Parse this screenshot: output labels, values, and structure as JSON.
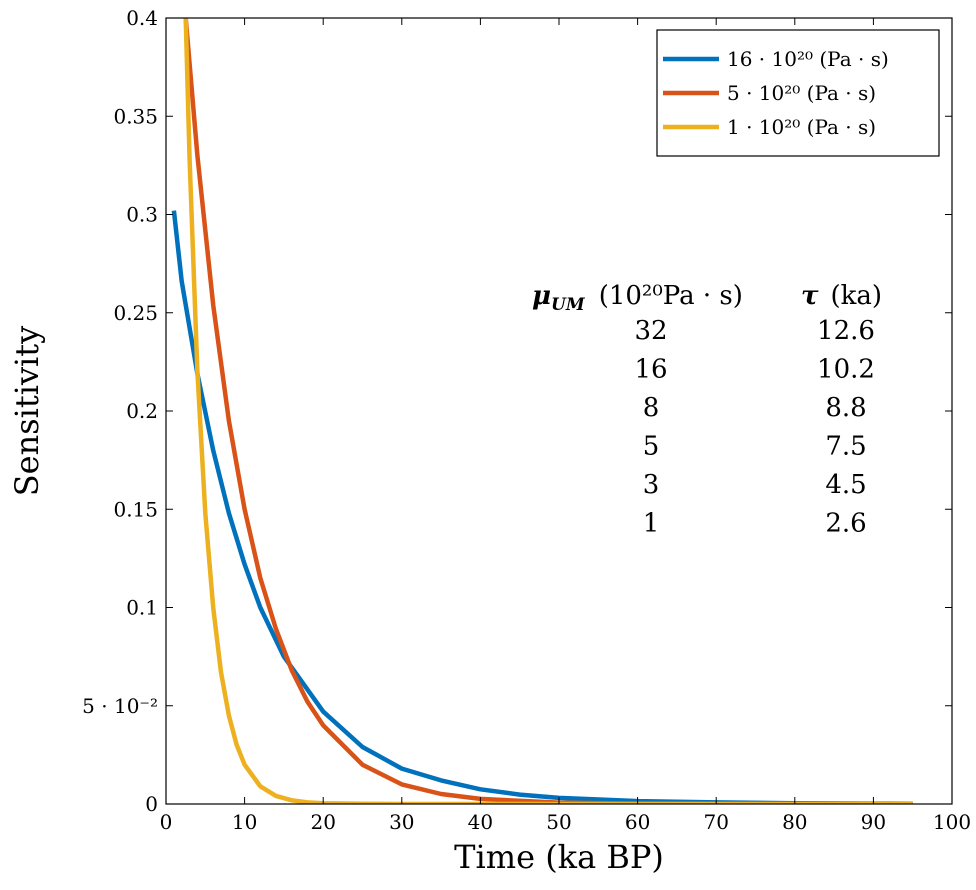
{
  "chart_data": {
    "type": "line",
    "title": "",
    "xlabel": "Time (ka BP)",
    "ylabel": "Sensitivity",
    "xlim": [
      0,
      100
    ],
    "ylim": [
      0,
      0.4
    ],
    "xticks": [
      0,
      10,
      20,
      30,
      40,
      50,
      60,
      70,
      80,
      90,
      100
    ],
    "xtick_labels": [
      "0",
      "10",
      "20",
      "30",
      "40",
      "50",
      "60",
      "70",
      "80",
      "90",
      "100"
    ],
    "yticks": [
      0,
      0.05,
      0.1,
      0.15,
      0.2,
      0.25,
      0.3,
      0.35,
      0.4
    ],
    "ytick_labels": [
      "0",
      "5 · 10⁻²",
      "0.1",
      "0.15",
      "0.2",
      "0.25",
      "0.3",
      "0.35",
      "0.4"
    ],
    "grid": false,
    "legend_position": "top-right",
    "series": [
      {
        "name": "16 · 10²⁰ (Pa · s)",
        "color": "#0072BD",
        "x": [
          1,
          2,
          4,
          6,
          8,
          10,
          12,
          15,
          20,
          25,
          30,
          35,
          40,
          45,
          50,
          60,
          70,
          80,
          90,
          95
        ],
        "y": [
          0.302,
          0.266,
          0.219,
          0.18,
          0.148,
          0.122,
          0.1,
          0.075,
          0.047,
          0.029,
          0.018,
          0.012,
          0.0075,
          0.0048,
          0.0031,
          0.0015,
          0.0008,
          0.0004,
          0.0002,
          0.0001
        ]
      },
      {
        "name": "5 · 10²⁰ (Pa · s)",
        "color": "#D95319",
        "x": [
          2.5,
          4,
          6,
          8,
          10,
          12,
          14,
          16,
          18,
          20,
          25,
          30,
          35,
          40,
          50,
          60,
          70,
          80,
          90,
          95
        ],
        "y": [
          0.4,
          0.33,
          0.254,
          0.195,
          0.15,
          0.115,
          0.089,
          0.068,
          0.052,
          0.04,
          0.02,
          0.01,
          0.0051,
          0.0026,
          0.0007,
          0.0002,
          0.0001,
          0.0,
          0.0,
          0.0
        ]
      },
      {
        "name": "1 · 10²⁰ (Pa · s)",
        "color": "#EDB120",
        "x": [
          2.5,
          3,
          4,
          5,
          6,
          7,
          8,
          9,
          10,
          12,
          14,
          16,
          18,
          20,
          25,
          30,
          40,
          60,
          80,
          95
        ],
        "y": [
          0.4,
          0.328,
          0.22,
          0.148,
          0.1,
          0.067,
          0.045,
          0.03,
          0.02,
          0.009,
          0.0041,
          0.0019,
          0.0008,
          0.0004,
          0.0001,
          0.0,
          0.0,
          0.0,
          0.0,
          0.0
        ]
      }
    ],
    "annotation_table": {
      "headers": [
        {
          "symbol": "μ",
          "subscript": "UM",
          "unit": "(10²⁰Pa · s)"
        },
        {
          "symbol": "τ",
          "subscript": "",
          "unit": "(ka)"
        }
      ],
      "rows": [
        [
          "32",
          "12.6"
        ],
        [
          "16",
          "10.2"
        ],
        [
          "8",
          "8.8"
        ],
        [
          "5",
          "7.5"
        ],
        [
          "3",
          "4.5"
        ],
        [
          "1",
          "2.6"
        ]
      ]
    }
  }
}
